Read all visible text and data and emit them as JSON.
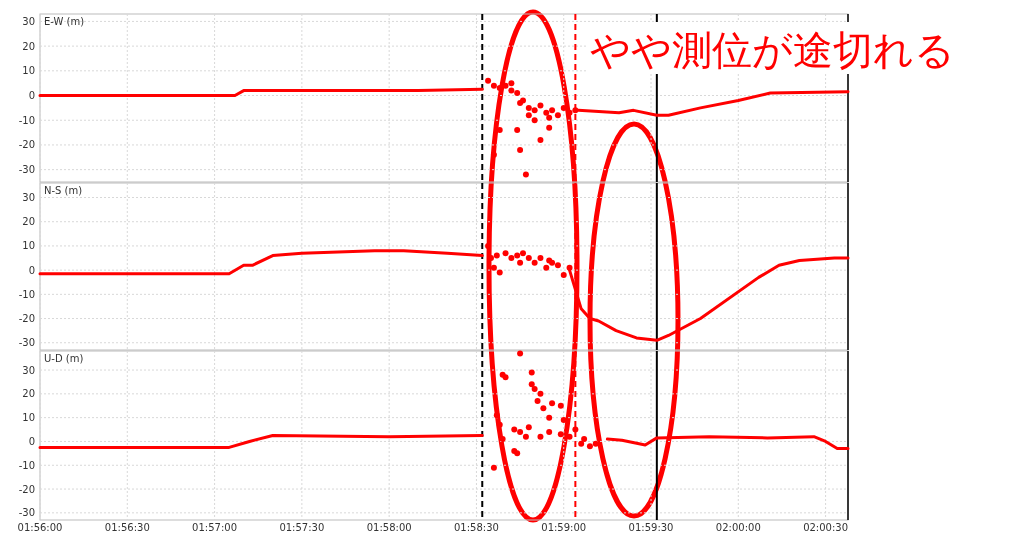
{
  "chart_data": [
    {
      "type": "line",
      "ylabel": "E-W (m)",
      "xlim": [
        1.933333,
        2.010472
      ],
      "ylim": [
        -35,
        33
      ],
      "grid": true,
      "tick_labels": "y",
      "annotations": [
        "やや測位が途切れる"
      ],
      "xticks": [
        {
          "value": 1.933333,
          "label": null
        },
        {
          "value": 1.941667,
          "label": null
        },
        {
          "value": 1.95,
          "label": null
        },
        {
          "value": 1.958333,
          "label": null
        },
        {
          "value": 1.966667,
          "label": null
        },
        {
          "value": 1.975,
          "label": null
        },
        {
          "value": 1.983333,
          "label": null
        },
        {
          "value": 1.991667,
          "label": null
        },
        {
          "value": 2.0,
          "label": null
        },
        {
          "value": 2.008333,
          "label": null
        }
      ],
      "yticks": [
        -30,
        -20,
        -10,
        0,
        10,
        20,
        30
      ],
      "ref_lines": [
        {
          "axis": "x",
          "value": 1.975556,
          "color": "#000000",
          "line_style": "dashed"
        },
        {
          "axis": "x",
          "value": 1.984444,
          "color": "#ff0000",
          "line_style": "dashed"
        },
        {
          "axis": "x",
          "value": 1.992222,
          "color": "#000000",
          "line_style": "solid"
        }
      ],
      "series": [
        {
          "type": "line",
          "color": "#ff0000",
          "marker": "none",
          "x": [
            1.933333,
            1.951944,
            1.952778,
            1.961111,
            1.969444,
            1.975556
          ],
          "values": [
            0,
            0,
            2,
            2,
            2,
            2.5
          ]
        },
        {
          "type": "line",
          "color": "#ff0000",
          "marker": "none",
          "x": [
            1.984722,
            1.988611,
            1.99,
            1.992222,
            1.993333,
            1.996389,
            2.0,
            2.003056,
            2.010472
          ],
          "values": [
            -6,
            -7,
            -6,
            -8,
            -8,
            -5,
            -2,
            1,
            1.5
          ]
        },
        {
          "type": "scatter",
          "color": "#ff0000",
          "marker": "circle",
          "x": [
            1.976111,
            1.976667,
            1.976667,
            1.977222,
            1.977222,
            1.977778,
            1.978333,
            1.978333,
            1.978889,
            1.978889,
            1.979167,
            1.979167,
            1.979444,
            1.979722,
            1.98,
            1.98,
            1.980556,
            1.980556,
            1.981111,
            1.981111,
            1.981667,
            1.981944,
            1.981944,
            1.982222,
            1.982778,
            1.983333,
            1.983889,
            1.984444
          ],
          "values": [
            6,
            4,
            -24,
            3,
            -14,
            4,
            2,
            5,
            1,
            -14,
            -22,
            -3,
            -2,
            -32,
            -5,
            -8,
            -6,
            -10,
            -4,
            -18,
            -7,
            -9,
            -13,
            -6,
            -8,
            -5,
            -7,
            -6
          ]
        }
      ]
    },
    {
      "type": "line",
      "ylabel": "N-S (m)",
      "xlim": [
        1.933333,
        2.010472
      ],
      "ylim": [
        -33,
        36
      ],
      "grid": true,
      "tick_labels": "y",
      "xticks": [
        {
          "value": 1.933333,
          "label": null
        },
        {
          "value": 1.941667,
          "label": null
        },
        {
          "value": 1.95,
          "label": null
        },
        {
          "value": 1.958333,
          "label": null
        },
        {
          "value": 1.966667,
          "label": null
        },
        {
          "value": 1.975,
          "label": null
        },
        {
          "value": 1.983333,
          "label": null
        },
        {
          "value": 1.991667,
          "label": null
        },
        {
          "value": 2.0,
          "label": null
        },
        {
          "value": 2.008333,
          "label": null
        }
      ],
      "yticks": [
        -30,
        -20,
        -10,
        0,
        10,
        20,
        30
      ],
      "ref_lines": [
        {
          "axis": "x",
          "value": 1.975556,
          "color": "#000000",
          "line_style": "dashed"
        },
        {
          "axis": "x",
          "value": 1.984444,
          "color": "#ff0000",
          "line_style": "dashed"
        },
        {
          "axis": "x",
          "value": 1.992222,
          "color": "#000000",
          "line_style": "solid"
        }
      ],
      "series": [
        {
          "type": "line",
          "color": "#ff0000",
          "marker": "none",
          "x": [
            1.933333,
            1.951389,
            1.952778,
            1.953611,
            1.955556,
            1.958333,
            1.965278,
            1.968056,
            1.972222,
            1.975556
          ],
          "values": [
            -1.5,
            -1.5,
            2,
            2,
            6,
            7,
            8,
            8,
            7,
            6
          ]
        },
        {
          "type": "line",
          "color": "#ff0000",
          "marker": "none",
          "x": [
            1.983889,
            1.985,
            1.985833,
            1.986667,
            1.988333,
            1.990278,
            1.992222,
            1.993333,
            1.996389,
            2.001944,
            2.003889,
            2.005833,
            2.009167,
            2.010472
          ],
          "values": [
            0,
            -16,
            -20,
            -21,
            -25,
            -28,
            -29,
            -27,
            -20,
            -3,
            2,
            4,
            5,
            5
          ]
        },
        {
          "type": "scatter",
          "color": "#ff0000",
          "marker": "circle",
          "x": [
            1.976111,
            1.976389,
            1.976667,
            1.976944,
            1.977222,
            1.977778,
            1.978333,
            1.978889,
            1.979167,
            1.979444,
            1.98,
            1.980556,
            1.981111,
            1.981667,
            1.981944,
            1.982222,
            1.982778,
            1.983333,
            1.983889
          ],
          "values": [
            10,
            5,
            1,
            6,
            -1,
            7,
            5,
            6,
            3,
            7,
            5,
            3,
            5,
            1,
            4,
            3,
            2,
            -2,
            1
          ]
        }
      ]
    },
    {
      "type": "line",
      "ylabel": "U-D (m)",
      "xlim": [
        1.933333,
        2.010472
      ],
      "ylim": [
        -33,
        38
      ],
      "grid": true,
      "xticks": [
        {
          "value": 1.933333,
          "label": "01:56:00"
        },
        {
          "value": 1.941667,
          "label": "01:56:30"
        },
        {
          "value": 1.95,
          "label": "01:57:00"
        },
        {
          "value": 1.958333,
          "label": "01:57:30"
        },
        {
          "value": 1.966667,
          "label": "01:58:00"
        },
        {
          "value": 1.975,
          "label": "01:58:30"
        },
        {
          "value": 1.983333,
          "label": "01:59:00"
        },
        {
          "value": 1.991667,
          "label": "01:59:30"
        },
        {
          "value": 2.0,
          "label": "02:00:00"
        },
        {
          "value": 2.008333,
          "label": "02:00:30"
        }
      ],
      "yticks": [
        -30,
        -20,
        -10,
        0,
        10,
        20,
        30
      ],
      "ref_lines": [
        {
          "axis": "x",
          "value": 1.975556,
          "color": "#000000",
          "line_style": "dashed"
        },
        {
          "axis": "x",
          "value": 1.984444,
          "color": "#ff0000",
          "line_style": "dashed"
        },
        {
          "axis": "x",
          "value": 1.992222,
          "color": "#000000",
          "line_style": "solid"
        }
      ],
      "series": [
        {
          "type": "line",
          "color": "#ff0000",
          "marker": "none",
          "x": [
            1.933333,
            1.951389,
            1.953333,
            1.955556,
            1.966667,
            1.975556
          ],
          "values": [
            -2.5,
            -2.5,
            0,
            2.5,
            2,
            2.5
          ]
        },
        {
          "type": "line",
          "color": "#ff0000",
          "marker": "none",
          "x": [
            1.9875,
            1.988889,
            1.991111,
            1.992222,
            1.997222,
            2.002778,
            2.007222,
            2.008333,
            2.009444,
            2.010472
          ],
          "values": [
            1,
            0.5,
            -1.5,
            1.5,
            2,
            1.5,
            2,
            0,
            -3,
            -3
          ]
        },
        {
          "type": "scatter",
          "color": "#ff0000",
          "marker": "circle",
          "x": [
            1.9775,
            1.977778,
            1.976944,
            1.977222,
            1.9775,
            1.976667,
            1.979167,
            1.980278,
            1.980278,
            1.980556,
            1.980833,
            1.981111,
            1.981389,
            1.981944,
            1.982222,
            1.983056,
            1.978611,
            1.979167,
            1.979722,
            1.98,
            1.981111,
            1.981944,
            1.983056,
            1.983333,
            1.983889,
            1.984444,
            1.985,
            1.985278,
            1.985833,
            1.986389,
            1.978611,
            1.978889
          ],
          "values": [
            28,
            27,
            11,
            7,
            1,
            -11,
            37,
            29,
            24,
            22,
            17,
            20,
            14,
            10,
            16,
            15,
            5,
            4,
            2,
            6,
            2,
            4,
            3,
            9,
            2,
            5,
            -1,
            1,
            -2,
            -1,
            -4,
            -5
          ]
        }
      ]
    }
  ]
}
